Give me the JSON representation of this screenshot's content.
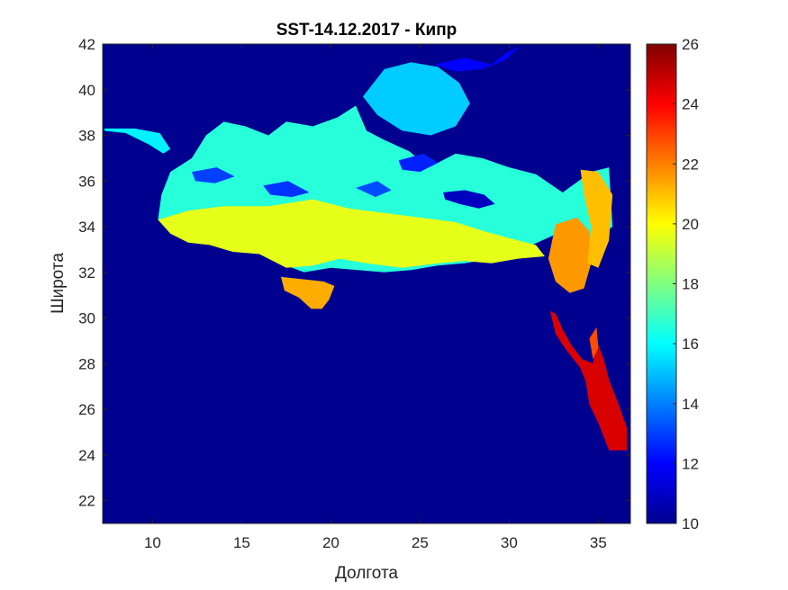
{
  "chart_data": {
    "type": "heatmap",
    "title": "SST-14.12.2017 - Кипр",
    "xlabel": "Долгота",
    "ylabel": "Широта",
    "xlim": [
      7.2,
      36.8
    ],
    "ylim": [
      21.0,
      42.0
    ],
    "x_ticks": [
      10,
      15,
      20,
      25,
      30,
      35
    ],
    "y_ticks": [
      22,
      24,
      26,
      28,
      30,
      32,
      34,
      36,
      38,
      40,
      42
    ],
    "colorbar": {
      "colormap": "jet",
      "range": [
        10,
        26
      ],
      "ticks": [
        10,
        12,
        14,
        16,
        18,
        20,
        22,
        24,
        26
      ]
    },
    "background_value": 10,
    "regions": [
      {
        "name": "",
        "polygon": [
          [
            7.3,
            38.2
          ],
          [
            8.5,
            38.1
          ],
          [
            9.8,
            37.6
          ],
          [
            10.6,
            37.2
          ],
          [
            11.0,
            37.4
          ],
          [
            10.4,
            38.1
          ],
          [
            9.0,
            38.3
          ],
          [
            7.3,
            38.3
          ]
        ],
        "value": 15.8
      },
      {
        "name": "",
        "polygon": [
          [
            11.0,
            36.4
          ],
          [
            12.2,
            37.0
          ],
          [
            13.0,
            38.0
          ],
          [
            14.0,
            38.6
          ],
          [
            15.2,
            38.4
          ],
          [
            16.5,
            38.0
          ],
          [
            17.5,
            38.6
          ],
          [
            19.0,
            38.4
          ],
          [
            20.4,
            38.8
          ],
          [
            21.4,
            39.3
          ],
          [
            22.0,
            38.2
          ],
          [
            23.0,
            37.8
          ],
          [
            24.4,
            37.3
          ],
          [
            25.5,
            36.6
          ],
          [
            27.0,
            37.2
          ],
          [
            28.5,
            37.0
          ],
          [
            30.0,
            36.6
          ],
          [
            31.5,
            36.3
          ],
          [
            33.0,
            35.5
          ],
          [
            34.6,
            36.4
          ],
          [
            35.6,
            36.6
          ],
          [
            35.8,
            34.0
          ],
          [
            34.4,
            33.2
          ],
          [
            33.0,
            33.8
          ],
          [
            31.0,
            33.1
          ],
          [
            29.0,
            32.6
          ],
          [
            27.5,
            32.4
          ],
          [
            26.0,
            32.3
          ],
          [
            24.5,
            32.1
          ],
          [
            23.0,
            32.0
          ],
          [
            21.5,
            32.1
          ],
          [
            20.0,
            32.2
          ],
          [
            18.5,
            32.0
          ],
          [
            16.5,
            32.6
          ],
          [
            15.0,
            33.2
          ],
          [
            13.5,
            33.5
          ],
          [
            12.2,
            33.5
          ],
          [
            10.3,
            34.3
          ],
          [
            10.5,
            35.4
          ]
        ],
        "value": 16.6
      },
      {
        "name": "",
        "polygon": [
          [
            21.8,
            39.7
          ],
          [
            23.0,
            40.9
          ],
          [
            24.5,
            41.2
          ],
          [
            26.0,
            41.0
          ],
          [
            27.2,
            40.3
          ],
          [
            27.8,
            39.4
          ],
          [
            27.0,
            38.4
          ],
          [
            25.6,
            38.0
          ],
          [
            24.0,
            38.2
          ],
          [
            22.6,
            38.9
          ]
        ],
        "value": 15.2
      },
      {
        "name": "",
        "polygon": [
          [
            25.8,
            41.1
          ],
          [
            27.5,
            41.4
          ],
          [
            29.0,
            41.1
          ],
          [
            29.8,
            41.6
          ],
          [
            30.6,
            41.9
          ],
          [
            29.8,
            41.3
          ],
          [
            28.5,
            40.9
          ],
          [
            27.0,
            40.8
          ]
        ],
        "value": 12.0
      },
      {
        "name": "",
        "polygon": [
          [
            10.3,
            34.3
          ],
          [
            12.0,
            34.7
          ],
          [
            14.0,
            34.9
          ],
          [
            16.5,
            34.9
          ],
          [
            19.0,
            35.2
          ],
          [
            21.0,
            34.8
          ],
          [
            23.0,
            34.6
          ],
          [
            25.0,
            34.4
          ],
          [
            27.0,
            34.2
          ],
          [
            28.6,
            33.8
          ],
          [
            30.0,
            33.5
          ],
          [
            31.5,
            33.2
          ],
          [
            32.0,
            32.7
          ],
          [
            30.5,
            32.6
          ],
          [
            29.0,
            32.4
          ],
          [
            27.5,
            32.5
          ],
          [
            26.0,
            32.4
          ],
          [
            24.0,
            32.2
          ],
          [
            22.0,
            32.4
          ],
          [
            20.5,
            32.6
          ],
          [
            19.0,
            32.3
          ],
          [
            17.5,
            32.2
          ],
          [
            16.0,
            32.8
          ],
          [
            14.5,
            32.9
          ],
          [
            13.2,
            33.2
          ],
          [
            12.0,
            33.3
          ],
          [
            11.0,
            33.7
          ]
        ],
        "value": 19.6
      },
      {
        "name": "",
        "polygon": [
          [
            17.2,
            31.8
          ],
          [
            18.4,
            31.7
          ],
          [
            19.6,
            31.6
          ],
          [
            20.2,
            31.4
          ],
          [
            19.9,
            30.8
          ],
          [
            19.5,
            30.4
          ],
          [
            18.9,
            30.4
          ],
          [
            18.2,
            30.9
          ],
          [
            17.4,
            31.2
          ]
        ],
        "value": 21.3
      },
      {
        "name": "",
        "polygon": [
          [
            32.6,
            34.1
          ],
          [
            33.8,
            34.4
          ],
          [
            34.5,
            33.8
          ],
          [
            34.6,
            32.4
          ],
          [
            34.2,
            31.3
          ],
          [
            33.4,
            31.1
          ],
          [
            32.6,
            31.6
          ],
          [
            32.2,
            32.6
          ]
        ],
        "value": 21.6
      },
      {
        "name": "",
        "polygon": [
          [
            34.0,
            36.5
          ],
          [
            35.0,
            36.4
          ],
          [
            35.8,
            35.4
          ],
          [
            35.6,
            33.4
          ],
          [
            35.0,
            32.2
          ],
          [
            34.4,
            32.4
          ],
          [
            34.6,
            34.0
          ],
          [
            34.2,
            35.4
          ]
        ],
        "value": 21.0
      },
      {
        "name": "",
        "polygon": [
          [
            32.3,
            30.3
          ],
          [
            32.6,
            29.3
          ],
          [
            33.2,
            28.6
          ],
          [
            34.0,
            27.8
          ],
          [
            34.3,
            27.2
          ],
          [
            34.5,
            26.2
          ],
          [
            35.0,
            25.4
          ],
          [
            35.3,
            24.8
          ],
          [
            35.6,
            24.2
          ],
          [
            36.6,
            24.2
          ],
          [
            36.6,
            25.2
          ],
          [
            36.1,
            26.3
          ],
          [
            35.6,
            27.3
          ],
          [
            35.3,
            28.2
          ],
          [
            34.9,
            29.0
          ],
          [
            34.7,
            28.0
          ],
          [
            34.1,
            28.2
          ],
          [
            33.5,
            28.8
          ],
          [
            33.0,
            29.5
          ],
          [
            32.6,
            30.2
          ]
        ],
        "value": 24.6
      },
      {
        "name": "",
        "polygon": [
          [
            34.5,
            29.1
          ],
          [
            34.9,
            29.6
          ],
          [
            35.0,
            28.7
          ],
          [
            34.7,
            28.2
          ]
        ],
        "value": 22.8
      },
      {
        "name": "",
        "polygon": [
          [
            26.3,
            35.5
          ],
          [
            27.5,
            35.6
          ],
          [
            28.6,
            35.4
          ],
          [
            29.2,
            35.0
          ],
          [
            28.3,
            34.8
          ],
          [
            27.2,
            35.0
          ],
          [
            26.4,
            35.2
          ]
        ],
        "value": 11.0
      },
      {
        "name": "",
        "polygon": [
          [
            16.2,
            35.8
          ],
          [
            17.6,
            36.0
          ],
          [
            18.8,
            35.5
          ],
          [
            17.8,
            35.3
          ],
          [
            16.6,
            35.4
          ]
        ],
        "value": 12.8
      },
      {
        "name": "",
        "polygon": [
          [
            21.4,
            35.7
          ],
          [
            22.6,
            36.0
          ],
          [
            23.4,
            35.6
          ],
          [
            22.5,
            35.3
          ]
        ],
        "value": 13.2
      },
      {
        "name": "",
        "polygon": [
          [
            12.2,
            36.4
          ],
          [
            13.6,
            36.6
          ],
          [
            14.6,
            36.2
          ],
          [
            13.5,
            35.9
          ],
          [
            12.4,
            36.0
          ]
        ],
        "value": 13.0
      },
      {
        "name": "",
        "polygon": [
          [
            23.8,
            36.9
          ],
          [
            25.2,
            37.2
          ],
          [
            26.0,
            36.8
          ],
          [
            25.0,
            36.4
          ],
          [
            24.0,
            36.5
          ]
        ],
        "value": 12.5
      }
    ]
  }
}
